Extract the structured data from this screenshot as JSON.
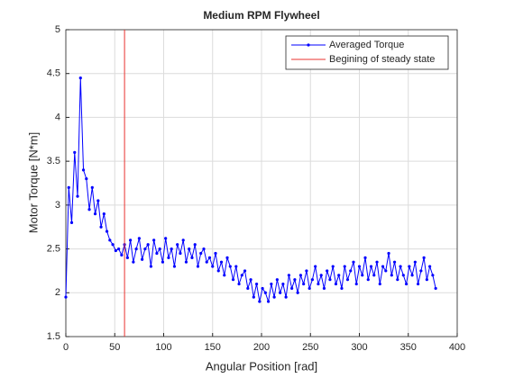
{
  "chart_data": {
    "type": "line",
    "title": "Medium RPM Flywheel",
    "xlabel": "Angular Position [rad]",
    "ylabel": "Motor Torque [N*m]",
    "xlim": [
      0,
      400
    ],
    "xticks": [
      0,
      50,
      100,
      150,
      200,
      250,
      300,
      350,
      400
    ],
    "ylim": [
      1.5,
      5
    ],
    "yticks": [
      1.5,
      2,
      2.5,
      3,
      3.5,
      4,
      4.5,
      5
    ],
    "grid": true,
    "legend": "northeast",
    "series": [
      {
        "name": "Averaged Torque",
        "color": "#0000ff",
        "marker": true,
        "x": [
          0,
          3,
          6,
          9,
          12,
          15,
          18,
          21,
          24,
          27,
          30,
          33,
          36,
          39,
          42,
          45,
          48,
          51,
          54,
          57,
          60,
          63,
          66,
          69,
          72,
          75,
          78,
          81,
          84,
          87,
          90,
          93,
          96,
          99,
          102,
          105,
          108,
          111,
          114,
          117,
          120,
          123,
          126,
          129,
          132,
          135,
          138,
          141,
          144,
          147,
          150,
          153,
          156,
          159,
          162,
          165,
          168,
          171,
          174,
          177,
          180,
          183,
          186,
          189,
          192,
          195,
          198,
          201,
          204,
          207,
          210,
          213,
          216,
          219,
          222,
          225,
          228,
          231,
          234,
          237,
          240,
          243,
          246,
          249,
          252,
          255,
          258,
          261,
          264,
          267,
          270,
          273,
          276,
          279,
          282,
          285,
          288,
          291,
          294,
          297,
          300,
          303,
          306,
          309,
          312,
          315,
          318,
          321,
          324,
          327,
          330,
          333,
          336,
          339,
          342,
          345,
          348,
          351,
          354,
          357,
          360,
          363,
          366,
          369,
          372,
          375,
          378
        ],
        "values": [
          1.95,
          3.2,
          2.8,
          3.6,
          3.1,
          4.45,
          3.4,
          3.3,
          2.95,
          3.2,
          2.9,
          3.05,
          2.75,
          2.9,
          2.7,
          2.6,
          2.55,
          2.48,
          2.5,
          2.43,
          2.55,
          2.4,
          2.6,
          2.35,
          2.5,
          2.62,
          2.38,
          2.5,
          2.55,
          2.3,
          2.6,
          2.45,
          2.5,
          2.35,
          2.62,
          2.4,
          2.5,
          2.3,
          2.55,
          2.45,
          2.6,
          2.35,
          2.5,
          2.4,
          2.55,
          2.3,
          2.45,
          2.5,
          2.35,
          2.4,
          2.3,
          2.45,
          2.25,
          2.35,
          2.2,
          2.4,
          2.3,
          2.15,
          2.3,
          2.1,
          2.2,
          2.25,
          2.05,
          2.15,
          1.95,
          2.1,
          1.9,
          2.05,
          2.0,
          1.9,
          2.1,
          1.95,
          2.15,
          2.0,
          2.1,
          1.95,
          2.2,
          2.05,
          2.15,
          2.0,
          2.2,
          2.1,
          2.25,
          2.05,
          2.15,
          2.3,
          2.1,
          2.2,
          2.05,
          2.25,
          2.15,
          2.3,
          2.1,
          2.2,
          2.05,
          2.3,
          2.15,
          2.25,
          2.35,
          2.1,
          2.3,
          2.2,
          2.4,
          2.15,
          2.3,
          2.2,
          2.35,
          2.1,
          2.3,
          2.25,
          2.45,
          2.2,
          2.35,
          2.15,
          2.3,
          2.2,
          2.1,
          2.3,
          2.2,
          2.35,
          2.1,
          2.25,
          2.4,
          2.15,
          2.3,
          2.2,
          2.05
        ]
      },
      {
        "name": "Begining of steady state",
        "color": "#e8332f",
        "marker": false,
        "x": [
          60,
          60
        ],
        "values": [
          1.5,
          5
        ]
      }
    ]
  }
}
